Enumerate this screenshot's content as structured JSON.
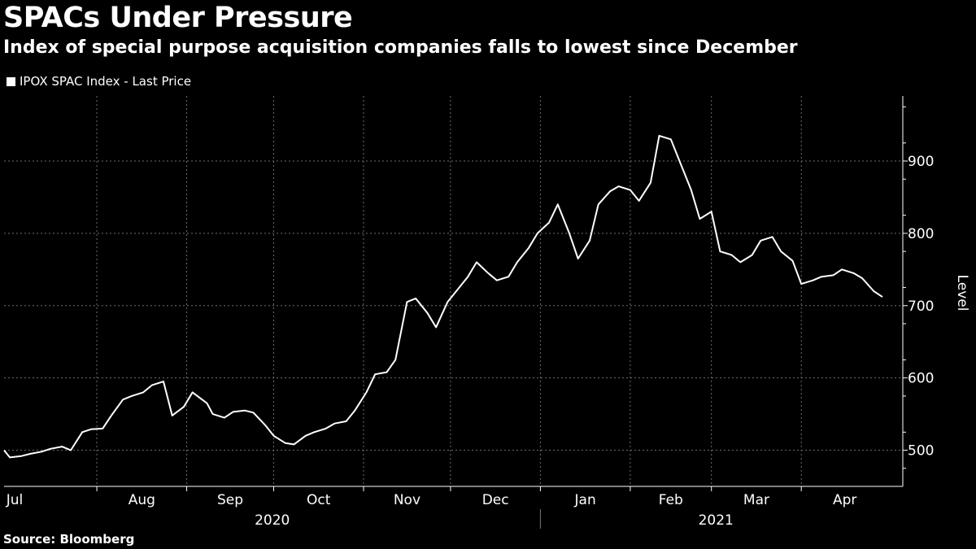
{
  "title": "SPACs Under Pressure",
  "subtitle": "Index of special purpose acquisition companies falls to lowest since December",
  "legend": {
    "label": "IPOX SPAC Index - Last Price"
  },
  "source": "Source: Bloomberg",
  "colors": {
    "background": "#000000",
    "line": "#ffffff",
    "grid": "#6e6e6e"
  },
  "chart_data": {
    "type": "line",
    "title": "SPACs Under Pressure",
    "ylabel": "Level",
    "ylim": [
      450,
      990
    ],
    "yticks": [
      500,
      600,
      700,
      800,
      900
    ],
    "grid": true,
    "legend_position": "top-left",
    "month_labels": [
      "Jul",
      "Aug",
      "Sep",
      "Oct",
      "Nov",
      "Dec",
      "Jan",
      "Feb",
      "Mar",
      "Apr"
    ],
    "year_labels": [
      "2020",
      "2021"
    ],
    "series": [
      {
        "name": "IPOX SPAC Index - Last Price",
        "x": [
          "2020-06-30",
          "2020-07-02",
          "2020-07-06",
          "2020-07-09",
          "2020-07-13",
          "2020-07-16",
          "2020-07-20",
          "2020-07-23",
          "2020-07-27",
          "2020-07-30",
          "2020-08-03",
          "2020-08-06",
          "2020-08-10",
          "2020-08-13",
          "2020-08-17",
          "2020-08-20",
          "2020-08-24",
          "2020-08-27",
          "2020-08-31",
          "2020-09-03",
          "2020-09-08",
          "2020-09-10",
          "2020-09-14",
          "2020-09-17",
          "2020-09-21",
          "2020-09-24",
          "2020-09-28",
          "2020-10-01",
          "2020-10-05",
          "2020-10-08",
          "2020-10-12",
          "2020-10-15",
          "2020-10-19",
          "2020-10-22",
          "2020-10-26",
          "2020-10-29",
          "2020-11-02",
          "2020-11-05",
          "2020-11-09",
          "2020-11-12",
          "2020-11-16",
          "2020-11-19",
          "2020-11-23",
          "2020-11-26",
          "2020-11-30",
          "2020-12-03",
          "2020-12-07",
          "2020-12-10",
          "2020-12-14",
          "2020-12-17",
          "2020-12-21",
          "2020-12-24",
          "2020-12-28",
          "2020-12-31",
          "2021-01-04",
          "2021-01-07",
          "2021-01-11",
          "2021-01-14",
          "2021-01-18",
          "2021-01-21",
          "2021-01-25",
          "2021-01-28",
          "2021-02-01",
          "2021-02-04",
          "2021-02-08",
          "2021-02-11",
          "2021-02-15",
          "2021-02-18",
          "2021-02-22",
          "2021-02-25",
          "2021-03-01",
          "2021-03-04",
          "2021-03-08",
          "2021-03-11",
          "2021-03-15",
          "2021-03-18",
          "2021-03-22",
          "2021-03-25",
          "2021-03-29",
          "2021-04-01",
          "2021-04-05",
          "2021-04-08",
          "2021-04-12",
          "2021-04-15",
          "2021-04-19",
          "2021-04-22",
          "2021-04-26",
          "2021-04-29"
        ],
        "values": [
          500,
          490,
          492,
          495,
          498,
          502,
          505,
          500,
          525,
          529,
          530,
          548,
          570,
          575,
          580,
          590,
          595,
          548,
          560,
          580,
          565,
          550,
          545,
          553,
          555,
          552,
          535,
          520,
          510,
          508,
          520,
          525,
          530,
          537,
          540,
          555,
          580,
          605,
          608,
          625,
          705,
          710,
          690,
          670,
          705,
          720,
          740,
          760,
          745,
          735,
          740,
          760,
          780,
          800,
          815,
          840,
          800,
          765,
          790,
          840,
          858,
          865,
          860,
          845,
          870,
          935,
          930,
          900,
          860,
          820,
          830,
          775,
          770,
          760,
          770,
          790,
          795,
          775,
          762,
          730,
          735,
          740,
          742,
          750,
          745,
          738,
          720,
          712
        ]
      }
    ]
  }
}
